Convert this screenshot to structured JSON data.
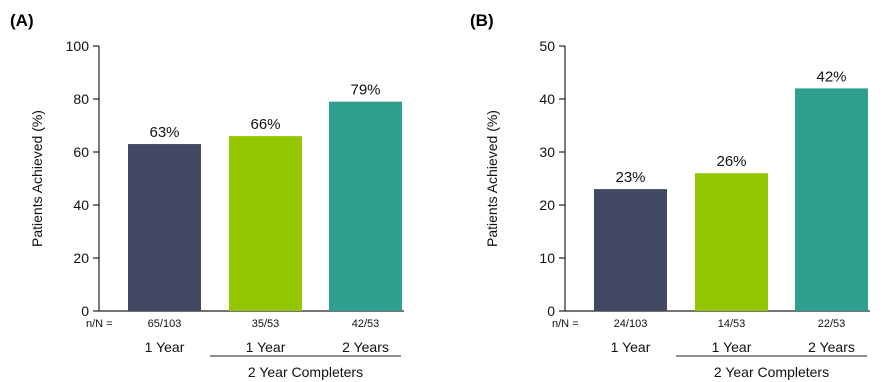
{
  "chart_data": [
    {
      "type": "bar",
      "panel_label": "(A)",
      "ylabel": "Patients Achieved (%)",
      "ylim": [
        0,
        100
      ],
      "yticks": [
        0,
        20,
        40,
        60,
        80,
        100
      ],
      "nn_prefix": "n/N =",
      "categories": [
        "1 Year",
        "1 Year",
        "2 Years"
      ],
      "values": [
        63,
        66,
        79
      ],
      "value_labels": [
        "63%",
        "66%",
        "79%"
      ],
      "nn_labels": [
        "65/103",
        "35/53",
        "42/53"
      ],
      "colors": [
        "#414a62",
        "#94c600",
        "#2f9f8f"
      ],
      "group_label": "2 Year Completers",
      "grid": false
    },
    {
      "type": "bar",
      "panel_label": "(B)",
      "ylabel": "Patients Achieved (%)",
      "ylim": [
        0,
        50
      ],
      "yticks": [
        0,
        10,
        20,
        30,
        40,
        50
      ],
      "nn_prefix": "n/N =",
      "categories": [
        "1 Year",
        "1 Year",
        "2 Years"
      ],
      "values": [
        23,
        26,
        42
      ],
      "value_labels": [
        "23%",
        "26%",
        "42%"
      ],
      "nn_labels": [
        "24/103",
        "14/53",
        "22/53"
      ],
      "colors": [
        "#414a62",
        "#94c600",
        "#2f9f8f"
      ],
      "group_label": "2 Year Completers",
      "grid": false
    }
  ]
}
